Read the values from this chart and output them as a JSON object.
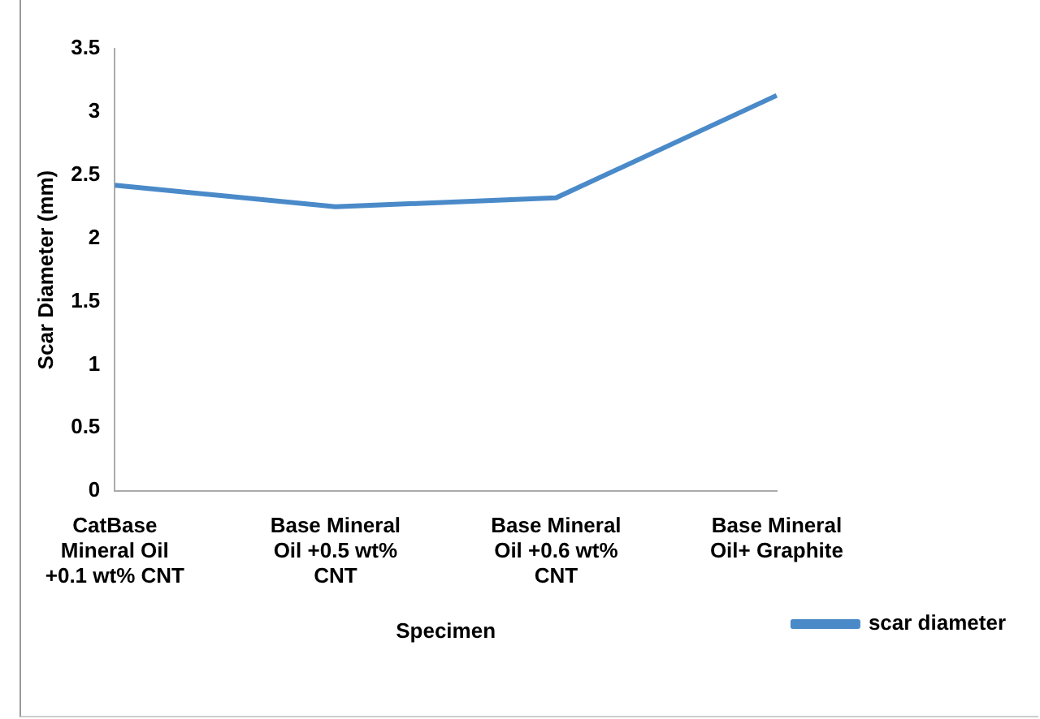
{
  "chart_data": {
    "type": "line",
    "xlabel": "Specimen",
    "ylabel": "Scar Diameter (mm)",
    "categories": [
      "CatBase Mineral Oil +0.1 wt% CNT",
      "Base Mineral Oil +0.5 wt% CNT",
      "Base Mineral Oil +0.6 wt% CNT",
      "Base Mineral Oil+ Graphite"
    ],
    "series": [
      {
        "name": "scar diameter",
        "color": "#4a8ac9",
        "values": [
          2.42,
          2.25,
          2.32,
          3.13
        ]
      }
    ],
    "ylim": [
      0,
      3.5
    ],
    "yticks": [
      0,
      0.5,
      1,
      1.5,
      2,
      2.5,
      3,
      3.5
    ],
    "grid": false,
    "legend": "bottom right",
    "marker": "none",
    "line_style": "solid"
  }
}
